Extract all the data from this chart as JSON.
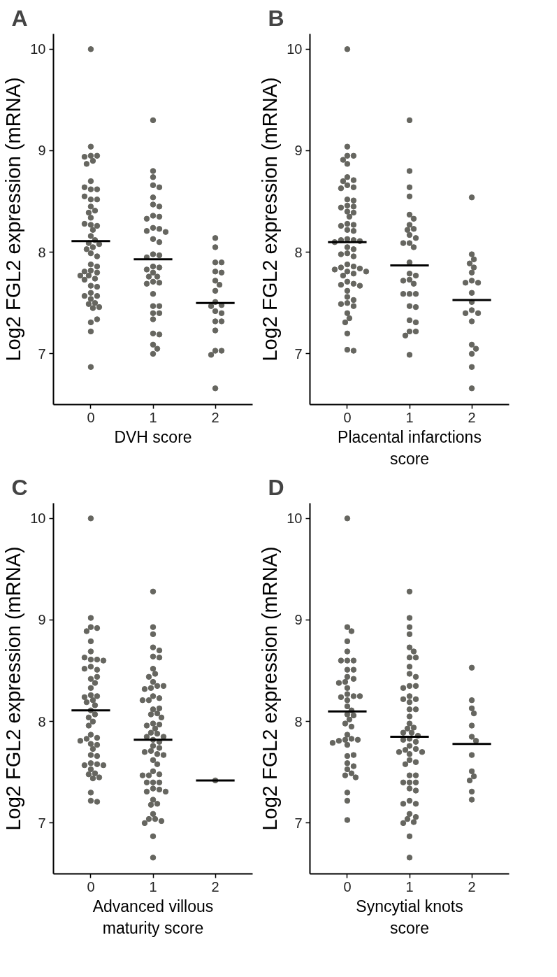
{
  "chart_data": [
    {
      "type": "scatter",
      "title": "A",
      "xlabel": "DVH score",
      "ylabel": "Log2 FGL2 expression (mRNA)",
      "categories": [
        "0",
        "1",
        "2"
      ],
      "ylim": [
        6.5,
        10.15
      ],
      "yticks": [
        7,
        8,
        9,
        10
      ],
      "grid": false,
      "marker": "circle",
      "series": [
        {
          "color": "#666660",
          "x": [
            "0",
            "0",
            "0",
            "0",
            "0",
            "0",
            "0",
            "0",
            "0",
            "0",
            "0",
            "0",
            "0",
            "0",
            "0",
            "0",
            "0",
            "0",
            "0",
            "0",
            "0",
            "0",
            "0",
            "0",
            "0",
            "0",
            "0",
            "0",
            "0",
            "0",
            "0",
            "0",
            "0",
            "0",
            "0",
            "0",
            "0",
            "0",
            "0",
            "0",
            "0",
            "0",
            "0",
            "0",
            "0",
            "0",
            "0",
            "0",
            "0",
            "0",
            "0",
            "0",
            "0"
          ],
          "values": [
            10.0,
            9.04,
            8.95,
            8.95,
            8.94,
            8.9,
            8.87,
            8.7,
            8.62,
            8.62,
            8.64,
            8.52,
            8.52,
            8.55,
            8.45,
            8.41,
            8.39,
            8.34,
            8.27,
            8.26,
            8.28,
            8.22,
            8.16,
            8.12,
            8.09,
            8.08,
            8.05,
            8.03,
            7.99,
            7.96,
            7.88,
            7.86,
            7.82,
            7.81,
            7.8,
            7.77,
            7.74,
            7.77,
            7.73,
            7.67,
            7.66,
            7.6,
            7.57,
            7.57,
            7.54,
            7.5,
            7.49,
            7.46,
            7.45,
            7.31,
            7.34,
            7.22,
            6.87
          ]
        },
        {
          "color": "#666660",
          "x": [
            "1",
            "1",
            "1",
            "1",
            "1",
            "1",
            "1",
            "1",
            "1",
            "1",
            "1",
            "1",
            "1",
            "1",
            "1",
            "1",
            "1",
            "1",
            "1",
            "1",
            "1",
            "1",
            "1",
            "1",
            "1",
            "1",
            "1",
            "1",
            "1",
            "1",
            "1",
            "1",
            "1",
            "1",
            "1",
            "1",
            "1",
            "1",
            "1",
            "1"
          ],
          "values": [
            9.3,
            8.8,
            8.74,
            8.66,
            8.64,
            8.54,
            8.47,
            8.45,
            8.36,
            8.35,
            8.33,
            8.24,
            8.23,
            8.21,
            8.2,
            8.13,
            8.1,
            7.98,
            7.97,
            7.95,
            7.86,
            7.85,
            7.83,
            7.8,
            7.76,
            7.76,
            7.71,
            7.7,
            7.69,
            7.59,
            7.47,
            7.47,
            7.4,
            7.4,
            7.34,
            7.2,
            7.19,
            7.09,
            7.05,
            7.0
          ]
        },
        {
          "color": "#666660",
          "x": [
            "2",
            "2",
            "2",
            "2",
            "2",
            "2",
            "2",
            "2",
            "2",
            "2",
            "2",
            "2",
            "2",
            "2",
            "2",
            "2",
            "2",
            "2",
            "2",
            "2",
            "2"
          ],
          "values": [
            8.14,
            8.05,
            7.9,
            7.9,
            7.81,
            7.8,
            7.72,
            7.68,
            7.62,
            7.51,
            7.48,
            7.47,
            7.42,
            7.4,
            7.32,
            7.32,
            7.23,
            7.03,
            7.03,
            6.99,
            6.66
          ]
        },
        {
          "type": "box",
          "color": "#000000",
          "boxes": [
            {
              "low": 8.11,
              "q1": 8.11,
              "median": 8.11,
              "q3": 8.11,
              "high": 8.11
            },
            {
              "low": 7.93,
              "q1": 7.93,
              "median": 7.93,
              "q3": 7.93,
              "high": 7.93
            },
            {
              "low": 7.5,
              "q1": 7.5,
              "median": 7.5,
              "q3": 7.5,
              "high": 7.5
            }
          ]
        }
      ]
    },
    {
      "type": "scatter",
      "title": "B",
      "xlabel": "Placental infarctions\nscore",
      "ylabel": "Log2 FGL2 expression (mRNA)",
      "categories": [
        "0",
        "1",
        "2"
      ],
      "ylim": [
        6.5,
        10.15
      ],
      "yticks": [
        7,
        8,
        9,
        10
      ],
      "grid": false,
      "marker": "circle",
      "series": [
        {
          "color": "#666660",
          "x": [
            "0",
            "0",
            "0",
            "0",
            "0",
            "0",
            "0",
            "0",
            "0",
            "0",
            "0",
            "0",
            "0",
            "0",
            "0",
            "0",
            "0",
            "0",
            "0",
            "0",
            "0",
            "0",
            "0",
            "0",
            "0",
            "0",
            "0",
            "0",
            "0",
            "0",
            "0",
            "0",
            "0",
            "0",
            "0",
            "0",
            "0",
            "0",
            "0",
            "0",
            "0",
            "0",
            "0",
            "0",
            "0",
            "0",
            "0",
            "0",
            "0",
            "0",
            "0",
            "0",
            "0",
            "0",
            "0",
            "0",
            "0",
            "0",
            "0",
            "0"
          ],
          "values": [
            10.0,
            9.04,
            8.95,
            8.95,
            8.91,
            8.87,
            8.74,
            8.71,
            8.7,
            8.66,
            8.64,
            8.63,
            8.52,
            8.51,
            8.46,
            8.45,
            8.44,
            8.4,
            8.39,
            8.35,
            8.28,
            8.27,
            8.26,
            8.22,
            8.21,
            8.13,
            8.12,
            8.12,
            8.11,
            8.1,
            8.05,
            8.03,
            7.99,
            7.98,
            7.96,
            7.88,
            7.86,
            7.85,
            7.84,
            7.83,
            7.81,
            7.81,
            7.79,
            7.77,
            7.71,
            7.69,
            7.68,
            7.67,
            7.62,
            7.56,
            7.53,
            7.5,
            7.49,
            7.47,
            7.4,
            7.35,
            7.31,
            7.2,
            7.04,
            7.03
          ]
        },
        {
          "color": "#666660",
          "x": [
            "1",
            "1",
            "1",
            "1",
            "1",
            "1",
            "1",
            "1",
            "1",
            "1",
            "1",
            "1",
            "1",
            "1",
            "1",
            "1",
            "1",
            "1",
            "1",
            "1",
            "1",
            "1",
            "1",
            "1",
            "1",
            "1",
            "1",
            "1",
            "1",
            "1",
            "1"
          ],
          "values": [
            9.3,
            8.8,
            8.64,
            8.55,
            8.37,
            8.33,
            8.27,
            8.23,
            8.22,
            8.17,
            8.14,
            8.09,
            8.09,
            8.05,
            7.9,
            7.79,
            7.77,
            7.73,
            7.72,
            7.69,
            7.59,
            7.59,
            7.59,
            7.47,
            7.46,
            7.33,
            7.31,
            7.22,
            7.22,
            7.18,
            6.99
          ]
        },
        {
          "color": "#666660",
          "x": [
            "2",
            "2",
            "2",
            "2",
            "2",
            "2",
            "2",
            "2",
            "2",
            "2",
            "2",
            "2",
            "2",
            "2",
            "2",
            "2",
            "2",
            "2",
            "2",
            "2"
          ],
          "values": [
            8.54,
            7.98,
            7.93,
            7.89,
            7.85,
            7.8,
            7.72,
            7.7,
            7.7,
            7.6,
            7.51,
            7.43,
            7.4,
            7.4,
            7.32,
            7.09,
            7.05,
            7.0,
            6.87,
            6.66
          ]
        },
        {
          "type": "box",
          "color": "#000000",
          "boxes": [
            {
              "low": 8.1,
              "q1": 8.1,
              "median": 8.1,
              "q3": 8.1,
              "high": 8.1
            },
            {
              "low": 7.87,
              "q1": 7.87,
              "median": 7.87,
              "q3": 7.87,
              "high": 7.87
            },
            {
              "low": 7.53,
              "q1": 7.53,
              "median": 7.53,
              "q3": 7.53,
              "high": 7.53
            }
          ]
        }
      ]
    },
    {
      "type": "scatter",
      "title": "C",
      "xlabel": "Advanced villous\nmaturity score",
      "ylabel": "Log2 FGL2 expression (mRNA)",
      "categories": [
        "0",
        "1",
        "2"
      ],
      "ylim": [
        6.5,
        10.15
      ],
      "yticks": [
        7,
        8,
        9,
        10
      ],
      "grid": false,
      "marker": "circle",
      "series": [
        {
          "color": "#666660",
          "x": [
            "0",
            "0",
            "0",
            "0",
            "0",
            "0",
            "0",
            "0",
            "0",
            "0",
            "0",
            "0",
            "0",
            "0",
            "0",
            "0",
            "0",
            "0",
            "0",
            "0",
            "0",
            "0",
            "0",
            "0",
            "0",
            "0",
            "0",
            "0",
            "0",
            "0",
            "0",
            "0",
            "0",
            "0",
            "0",
            "0",
            "0",
            "0",
            "0",
            "0",
            "0",
            "0",
            "0",
            "0",
            "0",
            "0",
            "0",
            "0",
            "0",
            "0"
          ],
          "values": [
            10.0,
            9.02,
            8.93,
            8.92,
            8.89,
            8.79,
            8.69,
            8.61,
            8.61,
            8.63,
            8.6,
            8.54,
            8.51,
            8.52,
            8.42,
            8.44,
            8.38,
            8.33,
            8.26,
            8.25,
            8.24,
            8.21,
            8.19,
            8.16,
            8.11,
            8.07,
            8.04,
            8.0,
            7.96,
            7.87,
            7.84,
            7.83,
            7.81,
            7.78,
            7.77,
            7.73,
            7.67,
            7.66,
            7.59,
            7.58,
            7.57,
            7.57,
            7.53,
            7.49,
            7.48,
            7.45,
            7.44,
            7.3,
            7.22,
            7.21
          ]
        },
        {
          "color": "#666660",
          "x": [
            "1",
            "1",
            "1",
            "1",
            "1",
            "1",
            "1",
            "1",
            "1",
            "1",
            "1",
            "1",
            "1",
            "1",
            "1",
            "1",
            "1",
            "1",
            "1",
            "1",
            "1",
            "1",
            "1",
            "1",
            "1",
            "1",
            "1",
            "1",
            "1",
            "1",
            "1",
            "1",
            "1",
            "1",
            "1",
            "1",
            "1",
            "1",
            "1",
            "1",
            "1",
            "1",
            "1",
            "1",
            "1",
            "1",
            "1",
            "1",
            "1",
            "1",
            "1",
            "1",
            "1",
            "1",
            "1",
            "1",
            "1",
            "1",
            "1",
            "1",
            "1",
            "1",
            "1"
          ],
          "values": [
            9.28,
            8.93,
            8.86,
            8.73,
            8.7,
            8.64,
            8.63,
            8.52,
            8.47,
            8.44,
            8.39,
            8.35,
            8.33,
            8.32,
            8.35,
            8.25,
            8.23,
            8.21,
            8.21,
            8.12,
            8.13,
            8.08,
            8.07,
            8.04,
            7.98,
            7.97,
            7.93,
            7.96,
            7.89,
            7.88,
            7.85,
            7.85,
            7.82,
            7.8,
            7.76,
            7.74,
            7.71,
            7.7,
            7.68,
            7.67,
            7.62,
            7.58,
            7.51,
            7.48,
            7.47,
            7.47,
            7.4,
            7.4,
            7.4,
            7.34,
            7.33,
            7.31,
            7.31,
            7.23,
            7.19,
            7.18,
            7.09,
            7.04,
            7.04,
            7.02,
            7.0,
            6.87,
            6.66
          ]
        },
        {
          "color": "#666660",
          "x": [
            "2"
          ],
          "values": [
            7.42
          ]
        },
        {
          "type": "box",
          "color": "#000000",
          "boxes": [
            {
              "low": 8.11,
              "q1": 8.11,
              "median": 8.11,
              "q3": 8.11,
              "high": 8.11
            },
            {
              "low": 7.82,
              "q1": 7.82,
              "median": 7.82,
              "q3": 7.82,
              "high": 7.82
            },
            {
              "low": 7.42,
              "q1": 7.42,
              "median": 7.42,
              "q3": 7.42,
              "high": 7.42
            }
          ]
        }
      ]
    },
    {
      "type": "scatter",
      "title": "D",
      "xlabel": "Syncytial knots\nscore",
      "ylabel": "Log2 FGL2 expression (mRNA)",
      "categories": [
        "0",
        "1",
        "2"
      ],
      "ylim": [
        6.5,
        10.15
      ],
      "yticks": [
        7,
        8,
        9,
        10
      ],
      "grid": false,
      "marker": "circle",
      "series": [
        {
          "color": "#666660",
          "x": [
            "0",
            "0",
            "0",
            "0",
            "0",
            "0",
            "0",
            "0",
            "0",
            "0",
            "0",
            "0",
            "0",
            "0",
            "0",
            "0",
            "0",
            "0",
            "0",
            "0",
            "0",
            "0",
            "0",
            "0",
            "0",
            "0",
            "0",
            "0",
            "0",
            "0",
            "0",
            "0",
            "0",
            "0",
            "0",
            "0",
            "0",
            "0",
            "0",
            "0",
            "0",
            "0",
            "0",
            "0",
            "0"
          ],
          "values": [
            10.0,
            8.93,
            8.89,
            8.79,
            8.69,
            8.6,
            8.6,
            8.6,
            8.51,
            8.51,
            8.44,
            8.42,
            8.39,
            8.38,
            8.33,
            8.27,
            8.25,
            8.24,
            8.21,
            8.25,
            8.15,
            8.11,
            8.07,
            8.06,
            8.02,
            7.98,
            7.95,
            7.87,
            7.83,
            7.82,
            7.81,
            7.82,
            7.79,
            7.77,
            7.66,
            7.67,
            7.59,
            7.56,
            7.53,
            7.49,
            7.47,
            7.45,
            7.3,
            7.22,
            7.03
          ]
        },
        {
          "color": "#666660",
          "x": [
            "1",
            "1",
            "1",
            "1",
            "1",
            "1",
            "1",
            "1",
            "1",
            "1",
            "1",
            "1",
            "1",
            "1",
            "1",
            "1",
            "1",
            "1",
            "1",
            "1",
            "1",
            "1",
            "1",
            "1",
            "1",
            "1",
            "1",
            "1",
            "1",
            "1",
            "1",
            "1",
            "1",
            "1",
            "1",
            "1",
            "1",
            "1",
            "1",
            "1",
            "1",
            "1",
            "1",
            "1",
            "1",
            "1",
            "1",
            "1",
            "1",
            "1",
            "1",
            "1",
            "1",
            "1",
            "1",
            "1"
          ],
          "values": [
            9.28,
            9.02,
            8.93,
            8.86,
            8.73,
            8.69,
            8.63,
            8.63,
            8.54,
            8.47,
            8.44,
            8.35,
            8.35,
            8.33,
            8.25,
            8.22,
            8.22,
            8.19,
            8.12,
            8.12,
            8.05,
            7.98,
            7.94,
            7.93,
            7.89,
            7.89,
            7.86,
            7.83,
            7.8,
            7.82,
            7.76,
            7.73,
            7.72,
            7.7,
            7.7,
            7.68,
            7.62,
            7.6,
            7.58,
            7.47,
            7.47,
            7.4,
            7.4,
            7.4,
            7.34,
            7.32,
            7.22,
            7.19,
            7.19,
            7.09,
            7.06,
            7.04,
            7.01,
            7.0,
            6.87,
            6.66
          ]
        },
        {
          "color": "#666660",
          "x": [
            "2",
            "2",
            "2",
            "2",
            "2",
            "2",
            "2",
            "2",
            "2",
            "2",
            "2",
            "2",
            "2"
          ],
          "values": [
            8.53,
            8.21,
            8.13,
            8.08,
            7.96,
            7.85,
            7.81,
            7.67,
            7.51,
            7.46,
            7.42,
            7.31,
            7.23
          ]
        },
        {
          "type": "box",
          "color": "#000000",
          "boxes": [
            {
              "low": 8.1,
              "q1": 8.1,
              "median": 8.1,
              "q3": 8.1,
              "high": 8.1
            },
            {
              "low": 7.85,
              "q1": 7.85,
              "median": 7.85,
              "q3": 7.85,
              "high": 7.85
            },
            {
              "low": 7.78,
              "q1": 7.78,
              "median": 7.78,
              "q3": 7.78,
              "high": 7.78
            }
          ]
        }
      ]
    }
  ]
}
